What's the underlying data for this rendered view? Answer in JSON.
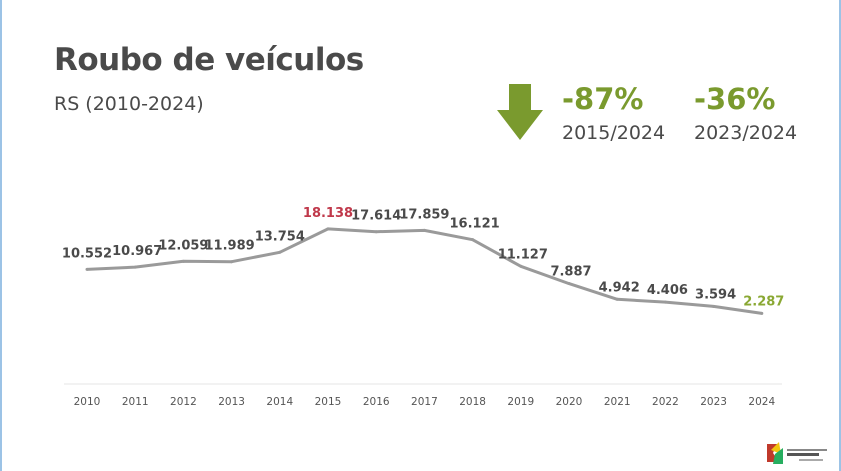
{
  "title": "Roubo de veículos",
  "subtitle": "RS (2010-2024)",
  "stats": [
    {
      "value": "-87%",
      "period": "2015/2024"
    },
    {
      "value": "-36%",
      "period": "2023/2024"
    }
  ],
  "colors": {
    "line": "#9a9a9a",
    "label": "#4a4a4a",
    "highlight_max": "#c0394b",
    "highlight_last": "#8aa833",
    "accent_green": "#7a9a2e"
  },
  "chart_data": {
    "type": "line",
    "title": "Roubo de veículos",
    "subtitle": "RS (2010-2024)",
    "xlabel": "",
    "ylabel": "",
    "grid": false,
    "legend": "none",
    "ylim": [
      0,
      20000
    ],
    "x": [
      "2010",
      "2011",
      "2012",
      "2013",
      "2014",
      "2015",
      "2016",
      "2017",
      "2018",
      "2019",
      "2020",
      "2021",
      "2022",
      "2023",
      "2024"
    ],
    "series": [
      {
        "values": [
          10552,
          10967,
          12059,
          11989,
          13754,
          18138,
          17614,
          17859,
          16121,
          11127,
          7887,
          4942,
          4406,
          3594,
          2287
        ],
        "labels": [
          "10.552",
          "10.967",
          "12.059",
          "11.989",
          "13.754",
          "18.138",
          "17.614",
          "17.859",
          "16.121",
          "11.127",
          "7.887",
          "4.942",
          "4.406",
          "3.594",
          "2.287"
        ]
      }
    ]
  },
  "icons": {
    "trend": "down-arrow-icon",
    "logo": "state-logo-icon"
  }
}
